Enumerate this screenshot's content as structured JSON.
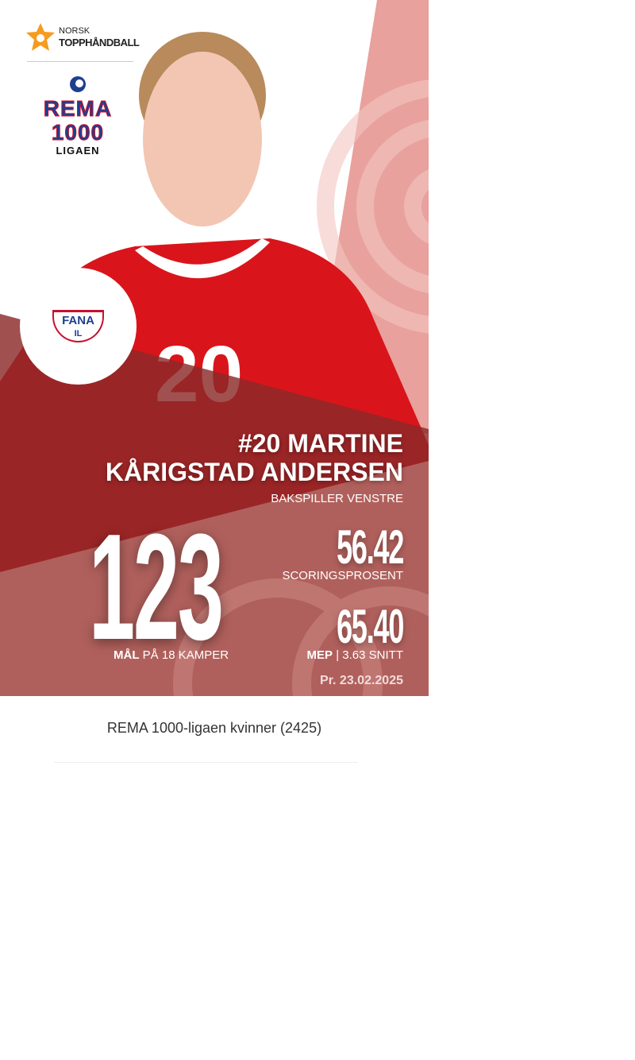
{
  "brand": {
    "norsk": "NORSK",
    "topphandball": "TOPPHÅNDBALL"
  },
  "league_logo": {
    "line1": "REMA",
    "line2": "1000",
    "line3": "LIGAEN"
  },
  "club": {
    "name": "FANA",
    "sub": "IL"
  },
  "player": {
    "name_line1": "#20 MARTINE",
    "name_line2": "KÅRIGSTAD ANDERSEN",
    "position": "BAKSPILLER VENSTRE",
    "jersey": "20"
  },
  "stats": {
    "goals": "123",
    "goals_label_bold": "MÅL",
    "goals_label": "PÅ 18 KAMPER",
    "scoring_pct": "56.42",
    "scoring_label": "SCORINGSPROSENT",
    "mep": "65.40",
    "mep_label_bold": "MEP",
    "mep_label": "| 3.63 SNITT"
  },
  "date": "Pr. 23.02.2025",
  "league_title": "REMA 1000-ligaen kvinner (2425)",
  "colors": {
    "red": "#d9151b",
    "pink": "#e8a19c",
    "overlay": "#8c2a2a",
    "lower": "#b0605c"
  }
}
